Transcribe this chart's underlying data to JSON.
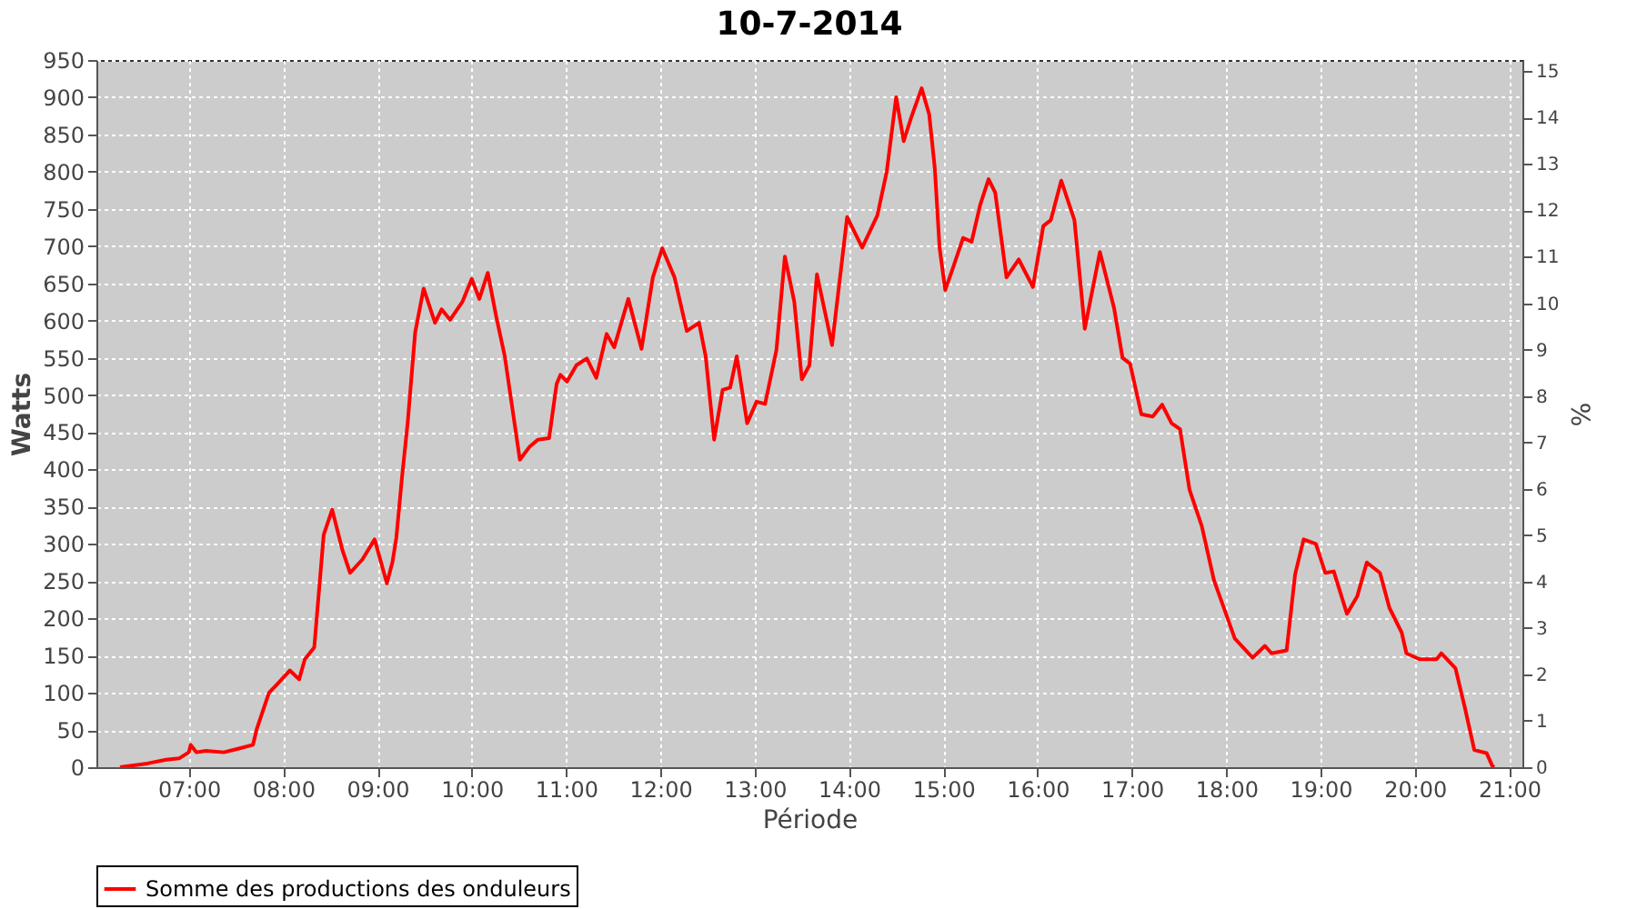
{
  "chart_data": {
    "type": "line",
    "title": "10-7-2014",
    "xlabel": "Période",
    "ylabel": "Watts",
    "y2label": "%",
    "xlim": [
      6.02,
      21.14
    ],
    "xticks": [
      {
        "value": 7,
        "label": "07:00"
      },
      {
        "value": 8,
        "label": "08:00"
      },
      {
        "value": 9,
        "label": "09:00"
      },
      {
        "value": 10,
        "label": "10:00"
      },
      {
        "value": 11,
        "label": "11:00"
      },
      {
        "value": 12,
        "label": "12:00"
      },
      {
        "value": 13,
        "label": "13:00"
      },
      {
        "value": 14,
        "label": "14:00"
      },
      {
        "value": 15,
        "label": "15:00"
      },
      {
        "value": 16,
        "label": "16:00"
      },
      {
        "value": 17,
        "label": "17:00"
      },
      {
        "value": 18,
        "label": "18:00"
      },
      {
        "value": 19,
        "label": "19:00"
      },
      {
        "value": 20,
        "label": "20:00"
      },
      {
        "value": 21,
        "label": "21:00"
      }
    ],
    "ylim": [
      0,
      950
    ],
    "yticks": [
      0,
      50,
      100,
      150,
      200,
      250,
      300,
      350,
      400,
      450,
      500,
      550,
      600,
      650,
      700,
      750,
      800,
      850,
      900,
      950
    ],
    "y2lim": [
      0,
      15.24
    ],
    "y2ticks": [
      0,
      1,
      2,
      3,
      4,
      5,
      6,
      7,
      8,
      9,
      10,
      11,
      12,
      13,
      14,
      15
    ],
    "grid": true,
    "legend": "bottom",
    "line_style": "solid",
    "series": [
      {
        "name": "Somme des productions des onduleurs",
        "color": "#ff0000",
        "x": [
          6.27,
          6.56,
          6.76,
          6.9,
          7.0,
          7.02,
          7.08,
          7.18,
          7.37,
          7.53,
          7.68,
          7.72,
          7.85,
          7.94,
          8.07,
          8.17,
          8.23,
          8.33,
          8.43,
          8.52,
          8.63,
          8.71,
          8.84,
          8.97,
          9.1,
          9.16,
          9.2,
          9.26,
          9.32,
          9.4,
          9.49,
          9.61,
          9.68,
          9.77,
          9.9,
          10.0,
          10.08,
          10.17,
          10.26,
          10.35,
          10.51,
          10.61,
          10.7,
          10.82,
          10.9,
          10.94,
          11.01,
          11.11,
          11.22,
          11.32,
          11.43,
          11.51,
          11.66,
          11.8,
          11.92,
          12.02,
          12.15,
          12.28,
          12.41,
          12.48,
          12.57,
          12.66,
          12.74,
          12.81,
          12.92,
          13.02,
          13.11,
          13.23,
          13.32,
          13.42,
          13.5,
          13.58,
          13.66,
          13.82,
          13.98,
          14.14,
          14.3,
          14.4,
          14.5,
          14.58,
          14.66,
          14.77,
          14.85,
          14.91,
          14.96,
          15.02,
          15.1,
          15.21,
          15.3,
          15.39,
          15.48,
          15.55,
          15.67,
          15.8,
          15.95,
          16.06,
          16.14,
          16.25,
          16.39,
          16.5,
          16.66,
          16.81,
          16.9,
          16.98,
          17.1,
          17.22,
          17.32,
          17.42,
          17.51,
          17.61,
          17.74,
          17.87,
          18.09,
          18.28,
          18.41,
          18.48,
          18.64,
          18.73,
          18.82,
          18.95,
          19.05,
          19.14,
          19.28,
          19.39,
          19.49,
          19.63,
          19.73,
          19.86,
          19.91,
          20.05,
          20.23,
          20.28,
          20.43,
          20.53,
          20.63,
          20.76,
          20.82,
          20.84
        ],
        "values": [
          0,
          5,
          10,
          12,
          20,
          30,
          20,
          22,
          20,
          25,
          30,
          51,
          100,
          112,
          130,
          118,
          145,
          161,
          312,
          346,
          291,
          261,
          279,
          306,
          247,
          276,
          308,
          389,
          462,
          584,
          643,
          597,
          615,
          601,
          625,
          656,
          629,
          664,
          605,
          552,
          413,
          430,
          440,
          442,
          515,
          527,
          518,
          540,
          549,
          523,
          582,
          564,
          629,
          562,
          658,
          697,
          658,
          586,
          597,
          552,
          440,
          507,
          510,
          552,
          462,
          491,
          488,
          560,
          686,
          625,
          521,
          540,
          662,
          567,
          739,
          698,
          741,
          800,
          900,
          841,
          873,
          912,
          877,
          804,
          698,
          641,
          670,
          711,
          706,
          755,
          790,
          772,
          658,
          682,
          645,
          727,
          735,
          788,
          735,
          589,
          692,
          617,
          550,
          542,
          474,
          471,
          487,
          462,
          454,
          373,
          324,
          251,
          173,
          147,
          163,
          153,
          157,
          259,
          306,
          300,
          261,
          263,
          206,
          230,
          275,
          261,
          214,
          181,
          153,
          145,
          145,
          153,
          133,
          80,
          23,
          19,
          2,
          0
        ]
      }
    ]
  }
}
